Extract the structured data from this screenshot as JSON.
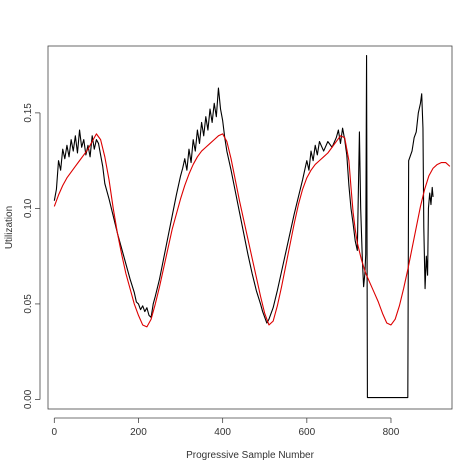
{
  "chart_data": {
    "type": "line",
    "title": "",
    "xlabel": "Progressive Sample Number",
    "ylabel": "Utilization",
    "xlim": [
      -15,
      945
    ],
    "ylim": [
      -0.005,
      0.185
    ],
    "x_ticks": [
      0,
      200,
      400,
      600,
      800
    ],
    "x_tick_labels": [
      "0",
      "200",
      "400",
      "600",
      "800"
    ],
    "y_ticks": [
      0.0,
      0.05,
      0.1,
      0.15
    ],
    "y_tick_labels": [
      "0.00",
      "0.05",
      "0.10",
      "0.15"
    ],
    "grid": false,
    "legend": "none",
    "series": [
      {
        "color": "#000000",
        "points": [
          [
            0,
            0.104
          ],
          [
            5,
            0.11
          ],
          [
            10,
            0.125
          ],
          [
            15,
            0.12
          ],
          [
            20,
            0.131
          ],
          [
            25,
            0.126
          ],
          [
            30,
            0.133
          ],
          [
            35,
            0.127
          ],
          [
            40,
            0.136
          ],
          [
            45,
            0.13
          ],
          [
            50,
            0.138
          ],
          [
            55,
            0.129
          ],
          [
            60,
            0.141
          ],
          [
            65,
            0.132
          ],
          [
            70,
            0.136
          ],
          [
            75,
            0.128
          ],
          [
            80,
            0.133
          ],
          [
            85,
            0.127
          ],
          [
            90,
            0.138
          ],
          [
            95,
            0.131
          ],
          [
            100,
            0.136
          ],
          [
            105,
            0.134
          ],
          [
            110,
            0.128
          ],
          [
            115,
            0.122
          ],
          [
            120,
            0.113
          ],
          [
            130,
            0.105
          ],
          [
            140,
            0.096
          ],
          [
            150,
            0.087
          ],
          [
            160,
            0.079
          ],
          [
            170,
            0.071
          ],
          [
            180,
            0.063
          ],
          [
            190,
            0.056
          ],
          [
            195,
            0.051
          ],
          [
            200,
            0.05
          ],
          [
            205,
            0.047
          ],
          [
            210,
            0.049
          ],
          [
            215,
            0.046
          ],
          [
            220,
            0.048
          ],
          [
            225,
            0.044
          ],
          [
            230,
            0.043
          ],
          [
            235,
            0.05
          ],
          [
            240,
            0.054
          ],
          [
            250,
            0.063
          ],
          [
            260,
            0.074
          ],
          [
            270,
            0.085
          ],
          [
            280,
            0.096
          ],
          [
            290,
            0.107
          ],
          [
            300,
            0.117
          ],
          [
            305,
            0.121
          ],
          [
            310,
            0.126
          ],
          [
            315,
            0.12
          ],
          [
            320,
            0.131
          ],
          [
            325,
            0.124
          ],
          [
            330,
            0.136
          ],
          [
            335,
            0.13
          ],
          [
            340,
            0.141
          ],
          [
            345,
            0.134
          ],
          [
            350,
            0.145
          ],
          [
            355,
            0.138
          ],
          [
            360,
            0.148
          ],
          [
            365,
            0.141
          ],
          [
            370,
            0.152
          ],
          [
            375,
            0.145
          ],
          [
            380,
            0.155
          ],
          [
            385,
            0.148
          ],
          [
            390,
            0.163
          ],
          [
            395,
            0.152
          ],
          [
            400,
            0.146
          ],
          [
            405,
            0.137
          ],
          [
            410,
            0.13
          ],
          [
            420,
            0.12
          ],
          [
            430,
            0.109
          ],
          [
            440,
            0.098
          ],
          [
            450,
            0.087
          ],
          [
            460,
            0.076
          ],
          [
            470,
            0.066
          ],
          [
            480,
            0.057
          ],
          [
            490,
            0.05
          ],
          [
            495,
            0.046
          ],
          [
            500,
            0.043
          ],
          [
            505,
            0.04
          ],
          [
            510,
            0.042
          ],
          [
            520,
            0.048
          ],
          [
            530,
            0.057
          ],
          [
            540,
            0.067
          ],
          [
            550,
            0.077
          ],
          [
            560,
            0.087
          ],
          [
            570,
            0.097
          ],
          [
            580,
            0.106
          ],
          [
            590,
            0.115
          ],
          [
            595,
            0.12
          ],
          [
            600,
            0.125
          ],
          [
            605,
            0.12
          ],
          [
            610,
            0.13
          ],
          [
            615,
            0.125
          ],
          [
            620,
            0.133
          ],
          [
            625,
            0.128
          ],
          [
            630,
            0.135
          ],
          [
            640,
            0.13
          ],
          [
            650,
            0.135
          ],
          [
            660,
            0.132
          ],
          [
            670,
            0.137
          ],
          [
            675,
            0.141
          ],
          [
            680,
            0.134
          ],
          [
            685,
            0.142
          ],
          [
            690,
            0.136
          ],
          [
            695,
            0.128
          ],
          [
            700,
            0.112
          ],
          [
            705,
            0.1
          ],
          [
            710,
            0.092
          ],
          [
            715,
            0.083
          ],
          [
            720,
            0.078
          ],
          [
            725,
            0.14
          ],
          [
            728,
            0.1
          ],
          [
            732,
            0.073
          ],
          [
            735,
            0.059
          ],
          [
            738,
            0.066
          ],
          [
            740,
            0.076
          ],
          [
            742,
            0.18
          ],
          [
            744,
            0.001
          ],
          [
            750,
            0.001
          ],
          [
            800,
            0.001
          ],
          [
            840,
            0.001
          ],
          [
            842,
            0.125
          ],
          [
            850,
            0.13
          ],
          [
            855,
            0.137
          ],
          [
            860,
            0.14
          ],
          [
            865,
            0.15
          ],
          [
            870,
            0.155
          ],
          [
            873,
            0.16
          ],
          [
            876,
            0.142
          ],
          [
            878,
            0.09
          ],
          [
            881,
            0.058
          ],
          [
            884,
            0.075
          ],
          [
            887,
            0.065
          ],
          [
            889,
            0.1
          ],
          [
            892,
            0.108
          ],
          [
            895,
            0.102
          ],
          [
            898,
            0.111
          ],
          [
            900,
            0.106
          ]
        ]
      },
      {
        "color": "#dd0000",
        "points": [
          [
            0,
            0.101
          ],
          [
            10,
            0.107
          ],
          [
            20,
            0.112
          ],
          [
            30,
            0.116
          ],
          [
            40,
            0.119
          ],
          [
            50,
            0.122
          ],
          [
            60,
            0.125
          ],
          [
            70,
            0.128
          ],
          [
            80,
            0.131
          ],
          [
            90,
            0.135
          ],
          [
            100,
            0.139
          ],
          [
            110,
            0.136
          ],
          [
            120,
            0.127
          ],
          [
            130,
            0.115
          ],
          [
            140,
            0.1
          ],
          [
            150,
            0.087
          ],
          [
            160,
            0.076
          ],
          [
            170,
            0.066
          ],
          [
            180,
            0.058
          ],
          [
            190,
            0.05
          ],
          [
            200,
            0.044
          ],
          [
            210,
            0.039
          ],
          [
            220,
            0.038
          ],
          [
            230,
            0.042
          ],
          [
            240,
            0.05
          ],
          [
            250,
            0.059
          ],
          [
            260,
            0.069
          ],
          [
            270,
            0.079
          ],
          [
            280,
            0.089
          ],
          [
            290,
            0.097
          ],
          [
            300,
            0.105
          ],
          [
            310,
            0.112
          ],
          [
            320,
            0.118
          ],
          [
            330,
            0.123
          ],
          [
            340,
            0.127
          ],
          [
            350,
            0.13
          ],
          [
            360,
            0.132
          ],
          [
            370,
            0.134
          ],
          [
            380,
            0.136
          ],
          [
            390,
            0.138
          ],
          [
            400,
            0.139
          ],
          [
            410,
            0.135
          ],
          [
            420,
            0.126
          ],
          [
            430,
            0.115
          ],
          [
            440,
            0.104
          ],
          [
            450,
            0.094
          ],
          [
            460,
            0.084
          ],
          [
            470,
            0.074
          ],
          [
            480,
            0.064
          ],
          [
            490,
            0.054
          ],
          [
            500,
            0.045
          ],
          [
            510,
            0.039
          ],
          [
            520,
            0.041
          ],
          [
            530,
            0.049
          ],
          [
            540,
            0.059
          ],
          [
            550,
            0.07
          ],
          [
            560,
            0.081
          ],
          [
            570,
            0.092
          ],
          [
            580,
            0.102
          ],
          [
            590,
            0.11
          ],
          [
            600,
            0.116
          ],
          [
            610,
            0.12
          ],
          [
            620,
            0.123
          ],
          [
            630,
            0.125
          ],
          [
            640,
            0.127
          ],
          [
            650,
            0.129
          ],
          [
            660,
            0.132
          ],
          [
            670,
            0.135
          ],
          [
            680,
            0.138
          ],
          [
            690,
            0.137
          ],
          [
            700,
            0.125
          ],
          [
            705,
            0.111
          ],
          [
            710,
            0.098
          ],
          [
            715,
            0.089
          ],
          [
            720,
            0.082
          ],
          [
            730,
            0.073
          ],
          [
            740,
            0.066
          ],
          [
            750,
            0.061
          ],
          [
            760,
            0.056
          ],
          [
            770,
            0.051
          ],
          [
            780,
            0.045
          ],
          [
            790,
            0.04
          ],
          [
            800,
            0.039
          ],
          [
            810,
            0.042
          ],
          [
            820,
            0.049
          ],
          [
            830,
            0.058
          ],
          [
            840,
            0.068
          ],
          [
            850,
            0.079
          ],
          [
            860,
            0.09
          ],
          [
            870,
            0.101
          ],
          [
            880,
            0.11
          ],
          [
            890,
            0.117
          ],
          [
            900,
            0.121
          ],
          [
            910,
            0.123
          ],
          [
            920,
            0.124
          ],
          [
            930,
            0.124
          ],
          [
            940,
            0.122
          ]
        ]
      }
    ]
  }
}
